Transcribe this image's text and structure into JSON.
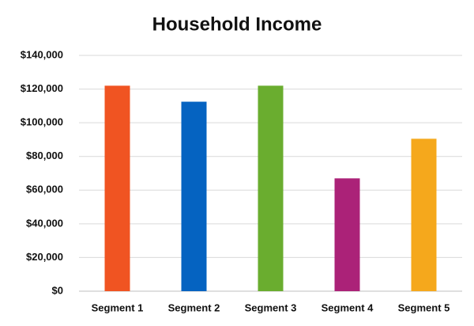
{
  "chart_data": {
    "type": "bar",
    "title": "Household Income",
    "categories": [
      "Segment 1",
      "Segment 2",
      "Segment 3",
      "Segment 4",
      "Segment 5"
    ],
    "values": [
      122000,
      112500,
      122000,
      67000,
      90500
    ],
    "colors": [
      "#f05422",
      "#0563c1",
      "#6aad2f",
      "#ab2278",
      "#f5a81c"
    ],
    "ylim": [
      0,
      140000
    ],
    "yticks": [
      {
        "value": 0,
        "label": "$0"
      },
      {
        "value": 20000,
        "label": "$20,000"
      },
      {
        "value": 40000,
        "label": "$40,000"
      },
      {
        "value": 60000,
        "label": "$60,000"
      },
      {
        "value": 80000,
        "label": "$80,000"
      },
      {
        "value": 100000,
        "label": "$100,000"
      },
      {
        "value": 120000,
        "label": "$120,000"
      },
      {
        "value": 140000,
        "label": "$140,000"
      }
    ],
    "grid": true
  }
}
